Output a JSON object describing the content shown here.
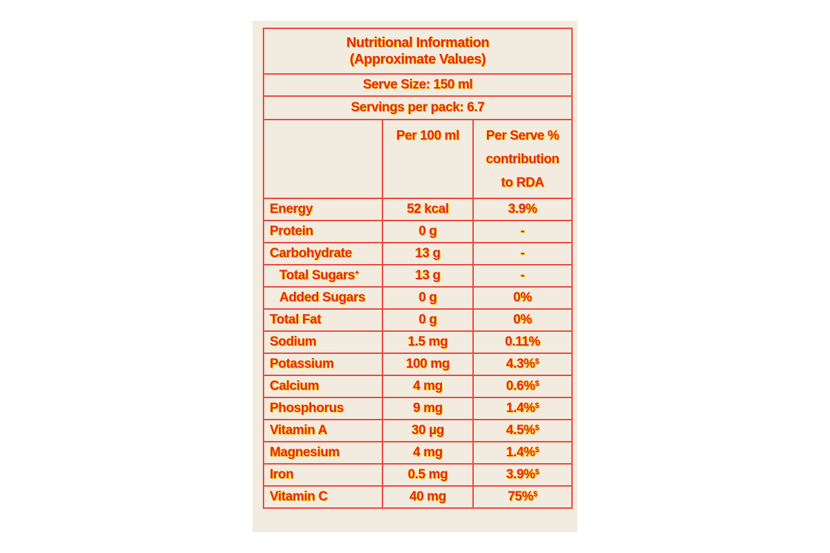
{
  "label": {
    "title": [
      "Nutritional Information",
      "(Approximate Values)"
    ],
    "serve_size": "Serve Size: 150 ml",
    "servings": "Servings per pack: 6.7",
    "columns": [
      "Per 100 ml",
      "Per Serve % contribution to RDA"
    ],
    "rows": [
      [
        "Energy",
        "52 kcal",
        "3.9%"
      ],
      [
        "Protein",
        "0 g",
        "-"
      ],
      [
        "Carbohydrate",
        "13 g",
        "-"
      ],
      [
        {
          "text": "Total Sugars",
          "sup": "+"
        },
        "13 g",
        "-"
      ],
      [
        "Added Sugars",
        "0 g",
        "0%"
      ],
      [
        "Total Fat",
        "0 g",
        "0%"
      ],
      [
        "Sodium",
        "1.5 mg",
        "0.11%"
      ],
      [
        "Potassium",
        "100 mg",
        {
          "text": "4.3%",
          "sup": "$"
        }
      ],
      [
        "Calcium",
        "4 mg",
        {
          "text": "0.6%",
          "sup": "$"
        }
      ],
      [
        "Phosphorus",
        "9 mg",
        {
          "text": "1.4%",
          "sup": "$"
        }
      ],
      [
        "Vitamin A",
        "30 µg",
        {
          "text": "4.5%",
          "sup": "$"
        }
      ],
      [
        "Magnesium",
        "4 mg",
        {
          "text": "1.4%",
          "sup": "$"
        }
      ],
      [
        "Iron",
        "0.5 mg",
        {
          "text": "3.9%",
          "sup": "$"
        }
      ],
      [
        "Vitamin C",
        "40 mg",
        {
          "text": "75%",
          "sup": "$"
        }
      ]
    ]
  }
}
